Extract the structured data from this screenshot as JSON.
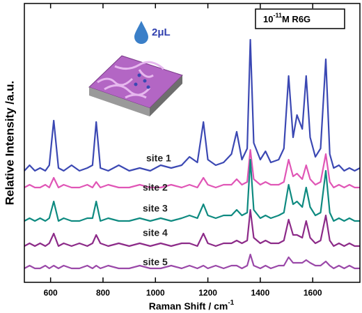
{
  "chart_data": {
    "type": "line",
    "xlabel": "Raman Shift / cm",
    "xlabel_exponent": "-1",
    "ylabel": "Relative Intensity /a.u.",
    "label_box": {
      "base": "10",
      "exponent": "-11",
      "text": "M R6G"
    },
    "inset_label": "2μL",
    "xlim": [
      500,
      1780
    ],
    "ylim": [
      0,
      100
    ],
    "xticks": [
      600,
      800,
      1000,
      1200,
      1400,
      1600
    ],
    "x": [
      500,
      520,
      540,
      560,
      580,
      595,
      612,
      630,
      650,
      680,
      710,
      740,
      760,
      774,
      790,
      820,
      860,
      900,
      940,
      980,
      1020,
      1060,
      1100,
      1130,
      1160,
      1183,
      1200,
      1230,
      1260,
      1290,
      1310,
      1330,
      1350,
      1362,
      1375,
      1400,
      1420,
      1440,
      1470,
      1490,
      1508,
      1525,
      1540,
      1560,
      1575,
      1590,
      1610,
      1630,
      1650,
      1665,
      1680,
      1700,
      1720,
      1740,
      1760,
      1780
    ],
    "series": [
      {
        "name": "site 1",
        "color": "#3b48b3",
        "values": [
          40,
          42,
          40,
          41,
          40,
          42,
          58,
          41,
          40,
          42,
          40,
          41,
          42,
          57.5,
          41,
          40,
          42,
          40,
          41,
          40,
          42,
          41,
          42,
          45,
          43,
          57.5,
          44,
          42,
          43,
          46,
          54,
          44,
          48,
          87,
          50,
          44,
          47,
          43,
          44,
          48,
          74,
          52,
          60,
          55,
          74,
          52,
          45,
          48,
          80,
          46,
          41,
          42,
          40,
          41,
          40,
          41
        ]
      },
      {
        "name": "site 2",
        "color": "#e056b6",
        "values": [
          34,
          35,
          34,
          34,
          35,
          34,
          37.5,
          34,
          35,
          34,
          34,
          35,
          34,
          36,
          34,
          35,
          34,
          34,
          35,
          34,
          34,
          35,
          34,
          35,
          34,
          37.5,
          35,
          34,
          35,
          35,
          37,
          35,
          36,
          47.5,
          37,
          35,
          36,
          35,
          35,
          36,
          44,
          38,
          39,
          37,
          42,
          37,
          35,
          36,
          46,
          36,
          34,
          35,
          34,
          35,
          34,
          34
        ]
      },
      {
        "name": "site 3",
        "color": "#0e8a80",
        "values": [
          22,
          23,
          22,
          23,
          22,
          23,
          29,
          22,
          23,
          22,
          22,
          23,
          23,
          29,
          22,
          23,
          22,
          22,
          23,
          22,
          23,
          22,
          23,
          24,
          23,
          28,
          24,
          23,
          24,
          24,
          26,
          24,
          25,
          44,
          26,
          23,
          24,
          23,
          24,
          25,
          35,
          28,
          29,
          27,
          34,
          27,
          24,
          25,
          40,
          25,
          22,
          23,
          22,
          23,
          22,
          22
        ]
      },
      {
        "name": "site 4",
        "color": "#8c2a88",
        "values": [
          13,
          14,
          13,
          14,
          13,
          14,
          17.5,
          13,
          14,
          13,
          14,
          13,
          14,
          17,
          14,
          13,
          14,
          13,
          14,
          13,
          14,
          13,
          14,
          14,
          13,
          17.5,
          14,
          13,
          14,
          14,
          15,
          14,
          15,
          26,
          16,
          14,
          15,
          14,
          14,
          15,
          22.5,
          17,
          17,
          16,
          22,
          16,
          14,
          15,
          24,
          15,
          13,
          14,
          13,
          14,
          13,
          13
        ]
      },
      {
        "name": "site 5",
        "color": "#9a48a8",
        "values": [
          5,
          6,
          5,
          5,
          6,
          5,
          6,
          5,
          6,
          5,
          5,
          6,
          5,
          6,
          5,
          6,
          5,
          5,
          6,
          5,
          5,
          6,
          5,
          6,
          5,
          6,
          5,
          6,
          5,
          6,
          6,
          5,
          6,
          10,
          6,
          5,
          6,
          5,
          6,
          6,
          9,
          7,
          7,
          7,
          8,
          7,
          6,
          6,
          7.5,
          6,
          5,
          6,
          5,
          6,
          5,
          5
        ]
      }
    ]
  }
}
